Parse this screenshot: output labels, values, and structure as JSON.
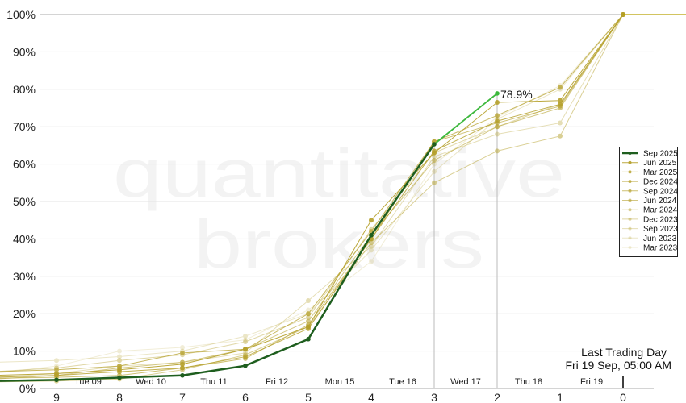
{
  "chart_data": {
    "type": "line",
    "title": "",
    "xlabel": "",
    "ylabel": "",
    "x": [
      9,
      8,
      7,
      6,
      5,
      4,
      3,
      2,
      1,
      0
    ],
    "x_tick_labels": [
      "9",
      "8",
      "7",
      "6",
      "5",
      "4",
      "3",
      "2",
      "1",
      "0"
    ],
    "day_labels": [
      "Tue 09",
      "Wed 10",
      "Thu 11",
      "Fri 12",
      "Mon 15",
      "Tue 16",
      "Wed 17",
      "Thu 18",
      "Fri 19"
    ],
    "y_tick_labels": [
      "0%",
      "10%",
      "20%",
      "30%",
      "40%",
      "50%",
      "60%",
      "70%",
      "80%",
      "90%",
      "100%"
    ],
    "ylim": [
      0,
      100
    ],
    "grid": true,
    "legend_placement": "right",
    "watermark": [
      "quantitative",
      "brokers"
    ],
    "annotation": {
      "line1": "Last Trading Day",
      "line2": "Fri 19 Sep, 05:00 AM",
      "x": 0
    },
    "highlight_label": "78.9%",
    "colors": {
      "current": "#1e5e1e",
      "current_last": "#3cb83c",
      "history": "#b5a02a",
      "grid": "#e3e3e3",
      "axis": "#aaaaaa"
    },
    "series": [
      {
        "name": "Sep 2025",
        "values": [
          2.3,
          2.9,
          3.5,
          6.1,
          13.2,
          41,
          65.3,
          78.9,
          null,
          null
        ]
      },
      {
        "name": "Jun 2025",
        "values": [
          4,
          5,
          6.5,
          10.5,
          16.5,
          45,
          63,
          76.5,
          77,
          100
        ]
      },
      {
        "name": "Mar 2025",
        "values": [
          3.5,
          4.5,
          5.5,
          8.5,
          16,
          40,
          63.5,
          71.5,
          76,
          100
        ]
      },
      {
        "name": "Dec 2024",
        "values": [
          5,
          6,
          9.5,
          10.5,
          20,
          42,
          66,
          73,
          80.5,
          100
        ]
      },
      {
        "name": "Sep 2024",
        "values": [
          3,
          3.5,
          5.5,
          8,
          17,
          40,
          66,
          71,
          75.5,
          100
        ]
      },
      {
        "name": "Jun 2024",
        "values": [
          3.5,
          5.5,
          7,
          10.5,
          18,
          41,
          61,
          70,
          75,
          100
        ]
      },
      {
        "name": "Mar 2024",
        "values": [
          2,
          2.5,
          5,
          9,
          16.5,
          39,
          55,
          63.5,
          67.5,
          100
        ]
      },
      {
        "name": "Dec 2023",
        "values": [
          5.5,
          7.5,
          9,
          12.5,
          19,
          42.5,
          63,
          70,
          76,
          100
        ]
      },
      {
        "name": "Sep 2023",
        "values": [
          4,
          6,
          7,
          9.5,
          23.5,
          38,
          62,
          68,
          71,
          100
        ]
      },
      {
        "name": "Jun 2023",
        "values": [
          7.5,
          8.5,
          10,
          14,
          20,
          37,
          58,
          72,
          80,
          100
        ]
      },
      {
        "name": "Mar 2023",
        "values": [
          6,
          10,
          11,
          13,
          21,
          34,
          60,
          72.5,
          81,
          100
        ]
      }
    ]
  }
}
